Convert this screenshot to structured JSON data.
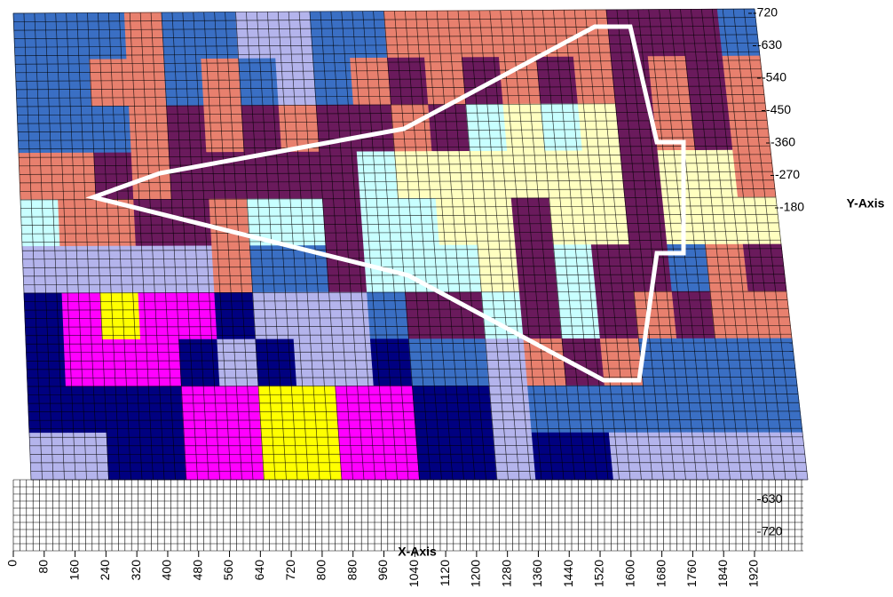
{
  "chart_data": {
    "type": "surface",
    "x_title": "X-Axis",
    "y_title": "Y-Axis",
    "xlim": [
      0,
      1920
    ],
    "xticks": [
      0,
      80,
      160,
      240,
      320,
      400,
      480,
      560,
      640,
      720,
      800,
      880,
      960,
      1040,
      1120,
      1200,
      1280,
      1360,
      1440,
      1520,
      1600,
      1680,
      1760,
      1840,
      1920
    ],
    "ylim": [
      -720,
      720
    ],
    "yticks": [
      -720,
      -630,
      -540,
      -450,
      -360,
      -270,
      -180,
      630,
      720
    ],
    "colors": [
      "#000080",
      "#3a6fc4",
      "#b4b4ec",
      "#e8806e",
      "#6a1a5c",
      "#c8ffff",
      "#ffffc0",
      "#ff00ff",
      "#ffff00"
    ],
    "z": [
      [
        1,
        1,
        1,
        3,
        1,
        1,
        2,
        2,
        1,
        1,
        3,
        3,
        3,
        3,
        3,
        3,
        4,
        4,
        4,
        1
      ],
      [
        1,
        1,
        3,
        3,
        1,
        3,
        1,
        2,
        1,
        3,
        4,
        3,
        4,
        3,
        4,
        3,
        4,
        3,
        4,
        3
      ],
      [
        1,
        1,
        1,
        3,
        4,
        3,
        4,
        3,
        4,
        4,
        3,
        4,
        5,
        6,
        5,
        6,
        4,
        3,
        4,
        3
      ],
      [
        3,
        3,
        4,
        3,
        4,
        4,
        4,
        4,
        4,
        5,
        6,
        6,
        6,
        6,
        6,
        6,
        4,
        6,
        6,
        3
      ],
      [
        5,
        3,
        3,
        4,
        4,
        3,
        5,
        5,
        4,
        5,
        5,
        6,
        6,
        4,
        6,
        6,
        4,
        6,
        6,
        6
      ],
      [
        2,
        2,
        2,
        2,
        2,
        3,
        1,
        1,
        4,
        5,
        5,
        5,
        6,
        4,
        5,
        4,
        4,
        1,
        3,
        4
      ],
      [
        0,
        7,
        8,
        7,
        7,
        0,
        2,
        2,
        2,
        1,
        4,
        4,
        5,
        4,
        5,
        4,
        3,
        4,
        3,
        3
      ],
      [
        0,
        7,
        7,
        7,
        0,
        2,
        0,
        2,
        2,
        0,
        1,
        1,
        2,
        3,
        4,
        3,
        1,
        1,
        1,
        1
      ],
      [
        0,
        0,
        0,
        0,
        7,
        7,
        8,
        8,
        7,
        7,
        0,
        0,
        2,
        1,
        1,
        1,
        1,
        1,
        1,
        1
      ],
      [
        2,
        2,
        0,
        0,
        7,
        7,
        8,
        8,
        7,
        7,
        0,
        0,
        2,
        0,
        0,
        2,
        2,
        2,
        2,
        2
      ]
    ]
  }
}
